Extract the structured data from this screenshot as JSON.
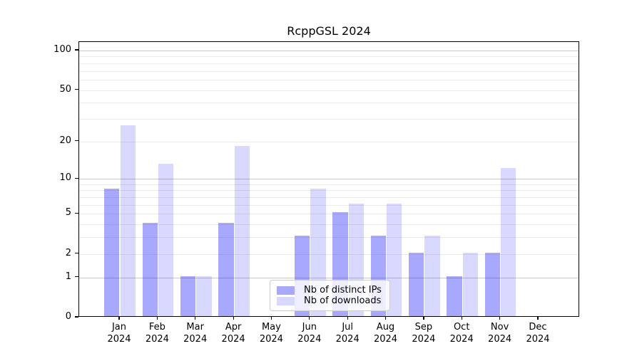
{
  "title": "RcppGSL 2024",
  "chart_data": {
    "type": "bar",
    "title": "RcppGSL 2024",
    "categories": [
      "Jan 2024",
      "Feb 2024",
      "Mar 2024",
      "Apr 2024",
      "May 2024",
      "Jun 2024",
      "Jul 2024",
      "Aug 2024",
      "Sep 2024",
      "Oct 2024",
      "Nov 2024",
      "Dec 2024"
    ],
    "series": [
      {
        "name": "Nb of distinct IPs",
        "color": "rgba(0,0,255,0.34)",
        "values": [
          8,
          4,
          1,
          4,
          0,
          3,
          5,
          3,
          2,
          1,
          2,
          0
        ]
      },
      {
        "name": "Nb of downloads",
        "color": "rgba(0,0,255,0.15)",
        "values": [
          26,
          13,
          1,
          18,
          0,
          8,
          6,
          6,
          3,
          2,
          12,
          0
        ]
      }
    ],
    "xlabel": "",
    "ylabel": "",
    "yscale": "log10(value+1)",
    "ylim": [
      0,
      116
    ],
    "grid": "horizontal, major and minor",
    "legend_position": "inside bottom-center"
  },
  "y_axis": {
    "tick_values": [
      0,
      1,
      2,
      5,
      10,
      20,
      50,
      100
    ],
    "tick_labels": [
      "0",
      "1",
      "2",
      "5",
      "10",
      "20",
      "50",
      "100"
    ],
    "major_gridlines": [
      1,
      10,
      100
    ],
    "minor_gridlines": [
      2,
      3,
      4,
      5,
      6,
      7,
      8,
      9,
      20,
      30,
      40,
      50,
      60,
      70,
      80,
      90
    ],
    "max": 116
  },
  "colors": {
    "bar_distinct_ips": "rgba(0,0,255,0.34)",
    "bar_downloads": "rgba(0,0,255,0.15)",
    "grid_major": "#c9c9c9",
    "grid_minor": "#ececec",
    "axis": "#000000",
    "legend_border": "#cccccc",
    "legend_background": "rgba(255,255,255,0.8)"
  }
}
